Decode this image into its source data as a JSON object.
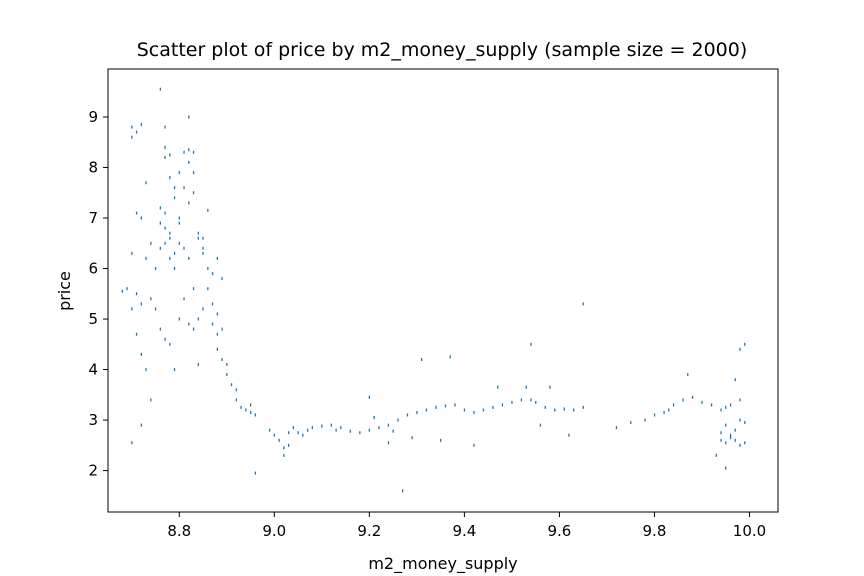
{
  "chart_data": {
    "type": "scatter",
    "title": "Scatter plot of price by m2_money_supply (sample size = 2000)",
    "xlabel": "m2_money_supply",
    "ylabel": "price",
    "xlim": [
      8.65,
      10.06
    ],
    "ylim": [
      1.18,
      9.95
    ],
    "x_ticks": [
      8.8,
      9.0,
      9.2,
      9.4,
      9.6,
      9.8,
      10.0
    ],
    "x_tick_labels": [
      "8.8",
      "9.0",
      "9.2",
      "9.4",
      "9.6",
      "9.8",
      "10.0"
    ],
    "y_ticks": [
      2,
      3,
      4,
      5,
      6,
      7,
      8,
      9
    ],
    "y_tick_labels": [
      "2",
      "3",
      "4",
      "5",
      "6",
      "7",
      "8",
      "9"
    ],
    "grid": false,
    "marker_color": "#1f77b4",
    "points": [
      [
        8.7,
        8.8
      ],
      [
        8.71,
        8.7
      ],
      [
        8.72,
        8.85
      ],
      [
        8.7,
        8.6
      ],
      [
        8.76,
        9.55
      ],
      [
        8.82,
        9.0
      ],
      [
        8.77,
        8.8
      ],
      [
        8.77,
        8.4
      ],
      [
        8.77,
        8.2
      ],
      [
        8.78,
        8.25
      ],
      [
        8.81,
        8.3
      ],
      [
        8.82,
        8.35
      ],
      [
        8.83,
        8.3
      ],
      [
        8.82,
        8.1
      ],
      [
        8.83,
        7.9
      ],
      [
        8.71,
        7.1
      ],
      [
        8.72,
        7.0
      ],
      [
        8.73,
        7.7
      ],
      [
        8.74,
        6.5
      ],
      [
        8.75,
        6.0
      ],
      [
        8.76,
        7.2
      ],
      [
        8.77,
        6.8
      ],
      [
        8.78,
        6.6
      ],
      [
        8.79,
        7.4
      ],
      [
        8.8,
        7.0
      ],
      [
        8.81,
        6.4
      ],
      [
        8.82,
        6.2
      ],
      [
        8.83,
        7.5
      ],
      [
        8.84,
        6.6
      ],
      [
        8.85,
        6.3
      ],
      [
        8.76,
        6.4
      ],
      [
        8.77,
        6.5
      ],
      [
        8.78,
        6.7
      ],
      [
        8.79,
        6.3
      ],
      [
        8.8,
        6.9
      ],
      [
        8.78,
        7.8
      ],
      [
        8.79,
        7.6
      ],
      [
        8.8,
        7.9
      ],
      [
        8.81,
        7.6
      ],
      [
        8.82,
        7.3
      ],
      [
        8.76,
        6.9
      ],
      [
        8.77,
        7.1
      ],
      [
        8.78,
        6.2
      ],
      [
        8.79,
        6.0
      ],
      [
        8.8,
        6.5
      ],
      [
        8.85,
        6.4
      ],
      [
        8.86,
        6.0
      ],
      [
        8.87,
        5.9
      ],
      [
        8.88,
        6.2
      ],
      [
        8.86,
        7.15
      ],
      [
        8.7,
        6.3
      ],
      [
        8.71,
        5.5
      ],
      [
        8.72,
        5.3
      ],
      [
        8.73,
        6.2
      ],
      [
        8.74,
        5.4
      ],
      [
        8.69,
        5.6
      ],
      [
        8.7,
        5.2
      ],
      [
        8.71,
        4.7
      ],
      [
        8.72,
        4.3
      ],
      [
        8.73,
        4.0
      ],
      [
        8.74,
        3.4
      ],
      [
        8.72,
        2.9
      ],
      [
        8.7,
        2.55
      ],
      [
        8.68,
        5.55
      ],
      [
        8.75,
        5.2
      ],
      [
        8.76,
        4.8
      ],
      [
        8.77,
        4.6
      ],
      [
        8.78,
        4.5
      ],
      [
        8.79,
        4.0
      ],
      [
        8.8,
        5.0
      ],
      [
        8.81,
        5.4
      ],
      [
        8.82,
        4.9
      ],
      [
        8.83,
        4.8
      ],
      [
        8.84,
        4.1
      ],
      [
        8.83,
        5.6
      ],
      [
        8.84,
        5.0
      ],
      [
        8.85,
        5.2
      ],
      [
        8.86,
        5.6
      ],
      [
        8.87,
        5.3
      ],
      [
        8.88,
        5.1
      ],
      [
        8.87,
        4.9
      ],
      [
        8.88,
        4.7
      ],
      [
        8.89,
        4.8
      ],
      [
        8.88,
        4.4
      ],
      [
        8.89,
        4.2
      ],
      [
        8.9,
        4.1
      ],
      [
        8.9,
        3.9
      ],
      [
        8.91,
        3.7
      ],
      [
        8.92,
        3.6
      ],
      [
        8.92,
        3.4
      ],
      [
        8.93,
        3.25
      ],
      [
        8.94,
        3.2
      ],
      [
        8.95,
        3.15
      ],
      [
        8.96,
        3.1
      ],
      [
        8.95,
        3.3
      ],
      [
        8.96,
        1.95
      ],
      [
        8.89,
        5.8
      ],
      [
        8.85,
        6.6
      ],
      [
        8.84,
        6.7
      ],
      [
        8.99,
        2.8
      ],
      [
        9.0,
        2.7
      ],
      [
        9.01,
        2.6
      ],
      [
        9.02,
        2.45
      ],
      [
        9.02,
        2.3
      ],
      [
        9.03,
        2.5
      ],
      [
        9.03,
        2.75
      ],
      [
        9.04,
        2.85
      ],
      [
        9.05,
        2.75
      ],
      [
        9.06,
        2.7
      ],
      [
        9.07,
        2.8
      ],
      [
        9.08,
        2.85
      ],
      [
        9.1,
        2.88
      ],
      [
        9.12,
        2.9
      ],
      [
        9.13,
        2.8
      ],
      [
        9.14,
        2.85
      ],
      [
        9.16,
        2.78
      ],
      [
        9.18,
        2.75
      ],
      [
        9.2,
        2.8
      ],
      [
        9.22,
        2.85
      ],
      [
        9.24,
        2.9
      ],
      [
        9.25,
        2.78
      ],
      [
        9.26,
        3.0
      ],
      [
        9.28,
        3.1
      ],
      [
        9.3,
        3.15
      ],
      [
        9.32,
        3.2
      ],
      [
        9.34,
        3.25
      ],
      [
        9.36,
        3.28
      ],
      [
        9.38,
        3.3
      ],
      [
        9.4,
        3.2
      ],
      [
        9.42,
        3.15
      ],
      [
        9.44,
        3.2
      ],
      [
        9.46,
        3.25
      ],
      [
        9.48,
        3.3
      ],
      [
        9.5,
        3.35
      ],
      [
        9.52,
        3.4
      ],
      [
        9.54,
        3.4
      ],
      [
        9.55,
        3.35
      ],
      [
        9.57,
        3.25
      ],
      [
        9.59,
        3.2
      ],
      [
        9.61,
        3.22
      ],
      [
        9.63,
        3.2
      ],
      [
        9.65,
        3.25
      ],
      [
        9.2,
        3.45
      ],
      [
        9.31,
        4.2
      ],
      [
        9.37,
        4.25
      ],
      [
        9.47,
        3.65
      ],
      [
        9.53,
        3.65
      ],
      [
        9.54,
        4.5
      ],
      [
        9.65,
        5.3
      ],
      [
        9.58,
        3.65
      ],
      [
        9.21,
        3.05
      ],
      [
        9.29,
        2.65
      ],
      [
        9.35,
        2.6
      ],
      [
        9.42,
        2.5
      ],
      [
        9.27,
        1.6
      ],
      [
        9.24,
        2.55
      ],
      [
        9.56,
        2.9
      ],
      [
        9.62,
        2.7
      ],
      [
        9.72,
        2.85
      ],
      [
        9.75,
        2.95
      ],
      [
        9.78,
        3.0
      ],
      [
        9.8,
        3.1
      ],
      [
        9.82,
        3.15
      ],
      [
        9.84,
        3.3
      ],
      [
        9.86,
        3.4
      ],
      [
        9.88,
        3.45
      ],
      [
        9.9,
        3.35
      ],
      [
        9.92,
        3.3
      ],
      [
        9.87,
        3.9
      ],
      [
        9.83,
        3.2
      ],
      [
        9.94,
        3.2
      ],
      [
        9.95,
        3.25
      ],
      [
        9.96,
        3.3
      ],
      [
        9.94,
        2.6
      ],
      [
        9.95,
        2.55
      ],
      [
        9.96,
        2.65
      ],
      [
        9.97,
        2.6
      ],
      [
        9.98,
        2.5
      ],
      [
        9.99,
        2.55
      ],
      [
        9.94,
        2.75
      ],
      [
        9.95,
        2.9
      ],
      [
        9.96,
        2.7
      ],
      [
        9.97,
        2.8
      ],
      [
        9.98,
        3.0
      ],
      [
        9.99,
        2.95
      ],
      [
        9.97,
        3.8
      ],
      [
        9.98,
        4.4
      ],
      [
        9.99,
        4.5
      ],
      [
        9.95,
        2.05
      ],
      [
        9.93,
        2.3
      ],
      [
        9.98,
        3.4
      ]
    ]
  }
}
